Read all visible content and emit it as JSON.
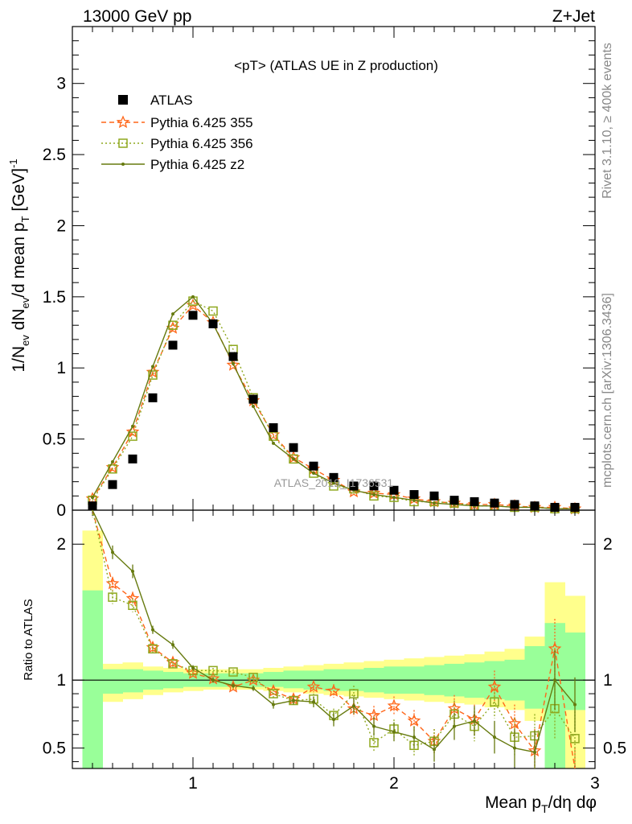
{
  "header": {
    "left": "13000 GeV pp",
    "right": "Z+Jet"
  },
  "side_text": {
    "top": "Rivet 3.1.10, ≥ 400k events",
    "bottom": "mcplots.cern.ch [arXiv:1306.3436]"
  },
  "watermark": "ATLAS_2019_I1736531",
  "colors": {
    "atlas": "#000000",
    "p355": "#ff6619",
    "p356": "#8fa81f",
    "pz2": "#667a0f",
    "band_yellow": "#ffff8c",
    "band_green": "#99ff99"
  },
  "chart_data": [
    {
      "type": "scatter",
      "title": "<pT> (ATLAS UE in Z production)",
      "ylabel": "1/N_ev dN_ev/d mean p_T [GeV]^-1",
      "xlim": [
        0.4,
        3.0
      ],
      "ylim": [
        0,
        3.4
      ],
      "yticks": [
        0,
        0.5,
        1,
        1.5,
        2,
        2.5,
        3
      ],
      "ytick_labels": [
        "0",
        "0.5",
        "1",
        "1.5",
        "2",
        "2.5",
        "3"
      ],
      "legend_position": "top-left",
      "x": [
        0.5,
        0.6,
        0.7,
        0.8,
        0.9,
        1.0,
        1.1,
        1.2,
        1.3,
        1.4,
        1.5,
        1.6,
        1.7,
        1.8,
        1.9,
        2.0,
        2.1,
        2.2,
        2.3,
        2.4,
        2.5,
        2.6,
        2.7,
        2.8,
        2.9
      ],
      "series": [
        {
          "name": "ATLAS",
          "key": "atlas",
          "values": [
            0.03,
            0.18,
            0.36,
            0.79,
            1.16,
            1.37,
            1.31,
            1.08,
            0.78,
            0.58,
            0.44,
            0.31,
            0.23,
            0.17,
            0.17,
            0.14,
            0.11,
            0.1,
            0.07,
            0.06,
            0.05,
            0.04,
            0.03,
            0.02,
            0.02
          ]
        },
        {
          "name": "Pythia 6.425 355",
          "key": "p355",
          "values": [
            0.08,
            0.3,
            0.55,
            0.97,
            1.28,
            1.44,
            1.32,
            1.02,
            0.77,
            0.53,
            0.37,
            0.29,
            0.21,
            0.13,
            0.12,
            0.11,
            0.08,
            0.06,
            0.05,
            0.04,
            0.04,
            0.03,
            0.02,
            0.02,
            0.01
          ]
        },
        {
          "name": "Pythia 6.425 356",
          "key": "p356",
          "values": [
            0.07,
            0.29,
            0.52,
            0.95,
            1.3,
            1.47,
            1.4,
            1.13,
            0.79,
            0.52,
            0.36,
            0.26,
            0.17,
            0.15,
            0.1,
            0.09,
            0.06,
            0.06,
            0.05,
            0.03,
            0.03,
            0.02,
            0.02,
            0.01,
            0.01
          ]
        },
        {
          "name": "Pythia 6.425 z2",
          "key": "pz2",
          "values": [
            0.09,
            0.34,
            0.59,
            1.01,
            1.38,
            1.5,
            1.31,
            1.03,
            0.73,
            0.47,
            0.36,
            0.26,
            0.19,
            0.14,
            0.11,
            0.09,
            0.07,
            0.05,
            0.04,
            0.03,
            0.03,
            0.02,
            0.02,
            0.01,
            0.01
          ]
        }
      ]
    },
    {
      "type": "line",
      "ylabel": "Ratio to ATLAS",
      "xlabel": "Mean p_T/dη dφ",
      "xlim": [
        0.4,
        3.0
      ],
      "ylim": [
        0.35,
        2.25
      ],
      "xticks": [
        1,
        2,
        3
      ],
      "xtick_labels": [
        "1",
        "2",
        "3"
      ],
      "yticks": [
        0.5,
        1,
        2
      ],
      "ytick_labels": [
        "0.5",
        "1",
        "2"
      ],
      "reference_line": 1,
      "bins": [
        0.45,
        0.55,
        0.65,
        0.75,
        0.85,
        0.95,
        1.05,
        1.15,
        1.25,
        1.35,
        1.45,
        1.55,
        1.65,
        1.75,
        1.85,
        1.95,
        2.05,
        2.15,
        2.25,
        2.35,
        2.45,
        2.55,
        2.65,
        2.75,
        2.85,
        2.95
      ],
      "band_yellow": {
        "lo": [
          0.35,
          0.84,
          0.86,
          0.89,
          0.91,
          0.92,
          0.93,
          0.93,
          0.93,
          0.92,
          0.91,
          0.9,
          0.89,
          0.88,
          0.87,
          0.86,
          0.85,
          0.84,
          0.83,
          0.82,
          0.8,
          0.78,
          0.7,
          0.35,
          0.35
        ],
        "hi": [
          2.1,
          1.12,
          1.13,
          1.1,
          1.09,
          1.08,
          1.08,
          1.08,
          1.08,
          1.09,
          1.1,
          1.11,
          1.12,
          1.13,
          1.14,
          1.15,
          1.16,
          1.17,
          1.18,
          1.19,
          1.21,
          1.23,
          1.32,
          1.72,
          1.62
        ]
      },
      "band_green": {
        "lo": [
          0.35,
          0.9,
          0.91,
          0.93,
          0.94,
          0.95,
          0.95,
          0.95,
          0.95,
          0.95,
          0.94,
          0.93,
          0.92,
          0.92,
          0.91,
          0.9,
          0.9,
          0.89,
          0.88,
          0.87,
          0.86,
          0.85,
          0.79,
          0.35,
          0.78
        ],
        "hi": [
          1.66,
          1.08,
          1.08,
          1.07,
          1.06,
          1.05,
          1.05,
          1.05,
          1.05,
          1.06,
          1.07,
          1.07,
          1.08,
          1.08,
          1.09,
          1.1,
          1.1,
          1.11,
          1.12,
          1.13,
          1.14,
          1.15,
          1.25,
          1.42,
          1.35
        ]
      },
      "x": [
        0.5,
        0.6,
        0.7,
        0.8,
        0.9,
        1.0,
        1.1,
        1.2,
        1.3,
        1.4,
        1.5,
        1.6,
        1.7,
        1.8,
        1.9,
        2.0,
        2.1,
        2.2,
        2.3,
        2.4,
        2.5,
        2.6,
        2.7,
        2.8,
        2.9
      ],
      "series": [
        {
          "key": "p355",
          "values": [
            2.6,
            1.71,
            1.6,
            1.24,
            1.13,
            1.05,
            1.01,
            0.95,
            1.0,
            0.92,
            0.86,
            0.95,
            0.92,
            0.79,
            0.74,
            0.81,
            0.7,
            0.55,
            0.79,
            0.71,
            0.95,
            0.68,
            0.48,
            1.23,
            0.3
          ],
          "err": [
            0.2,
            0.05,
            0.05,
            0.03,
            0.03,
            0.02,
            0.02,
            0.02,
            0.02,
            0.03,
            0.03,
            0.04,
            0.05,
            0.06,
            0.07,
            0.07,
            0.08,
            0.09,
            0.1,
            0.11,
            0.12,
            0.14,
            0.16,
            0.22,
            0.2
          ]
        },
        {
          "key": "p356",
          "values": [
            2.4,
            1.61,
            1.55,
            1.23,
            1.12,
            1.07,
            1.07,
            1.06,
            1.02,
            0.9,
            0.85,
            0.86,
            0.74,
            0.9,
            0.54,
            0.64,
            0.52,
            0.55,
            0.75,
            0.66,
            0.84,
            0.58,
            0.59,
            0.79,
            0.57
          ],
          "err": [
            0.2,
            0.05,
            0.05,
            0.03,
            0.03,
            0.02,
            0.02,
            0.02,
            0.02,
            0.03,
            0.03,
            0.04,
            0.05,
            0.06,
            0.07,
            0.07,
            0.08,
            0.09,
            0.1,
            0.11,
            0.12,
            0.14,
            0.16,
            0.22,
            0.2
          ]
        },
        {
          "key": "pz2",
          "values": [
            2.9,
            1.94,
            1.8,
            1.37,
            1.26,
            1.09,
            1.0,
            0.96,
            0.94,
            0.82,
            0.85,
            0.84,
            0.71,
            0.81,
            0.66,
            0.62,
            0.58,
            0.49,
            0.66,
            0.7,
            0.58,
            0.5,
            0.47,
            1.0,
            0.82
          ],
          "err": [
            0.2,
            0.05,
            0.05,
            0.03,
            0.03,
            0.02,
            0.02,
            0.02,
            0.02,
            0.03,
            0.03,
            0.04,
            0.05,
            0.06,
            0.07,
            0.07,
            0.08,
            0.09,
            0.1,
            0.11,
            0.12,
            0.14,
            0.16,
            0.22,
            0.2
          ]
        }
      ]
    }
  ]
}
